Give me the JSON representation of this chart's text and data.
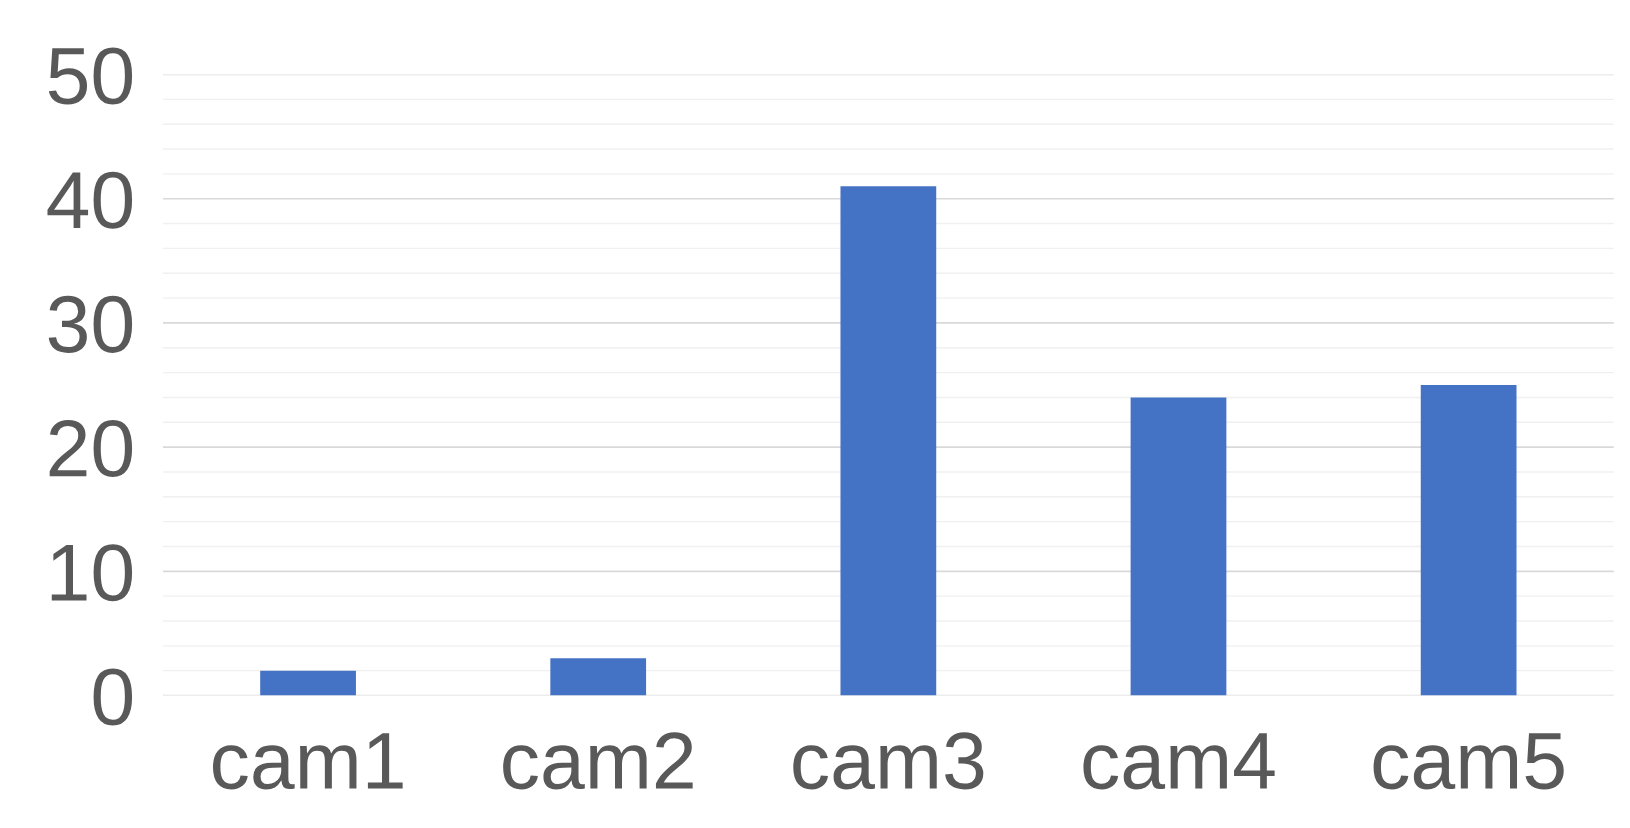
{
  "chart_data": {
    "type": "bar",
    "categories": [
      "cam1",
      "cam2",
      "cam3",
      "cam4",
      "cam5"
    ],
    "values": [
      2,
      3,
      41,
      24,
      25
    ],
    "color": "#4472c4",
    "ylim": [
      0,
      50
    ],
    "yticks": [
      0,
      {
        "value": 2,
        "label": null
      },
      {
        "value": 4,
        "label": null
      },
      {
        "value": 6,
        "label": null
      },
      {
        "value": 8,
        "label": null
      },
      10,
      {
        "value": 12,
        "label": null
      },
      {
        "value": 14,
        "label": null
      },
      {
        "value": 16,
        "label": null
      },
      {
        "value": 18,
        "label": null
      },
      20,
      {
        "value": 22,
        "label": null
      },
      {
        "value": 24,
        "label": null
      },
      {
        "value": 26,
        "label": null
      },
      {
        "value": 28,
        "label": null
      },
      30,
      {
        "value": 32,
        "label": null
      },
      {
        "value": 34,
        "label": null
      },
      {
        "value": 36,
        "label": null
      },
      {
        "value": 38,
        "label": null
      },
      40,
      {
        "value": 42,
        "label": null
      },
      {
        "value": 44,
        "label": null
      },
      {
        "value": 46,
        "label": null
      },
      {
        "value": 48,
        "label": null
      },
      50
    ],
    "grid": "y"
  }
}
